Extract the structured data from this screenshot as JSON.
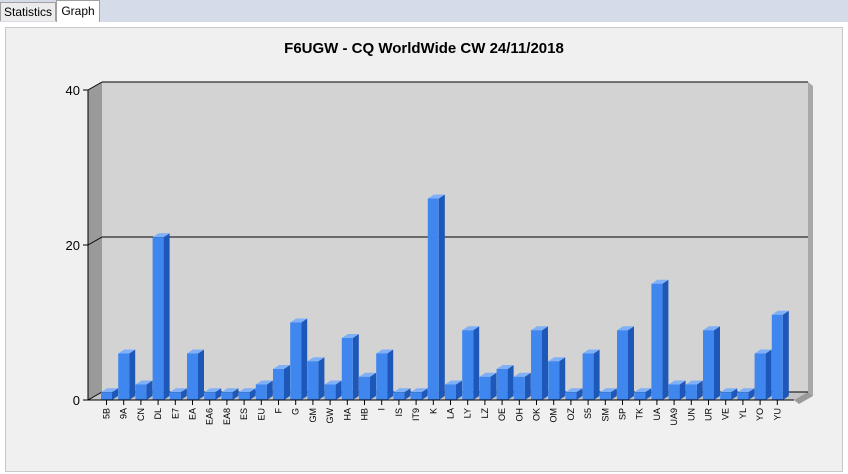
{
  "tabs": [
    {
      "label": "Statistics",
      "active": false
    },
    {
      "label": "Graph",
      "active": true
    }
  ],
  "colors": {
    "bar_front": "#3f86ee",
    "bar_side": "#1d57b8",
    "bar_top": "#7fb0f8",
    "plot_bg": "#d3d3d3",
    "back_wall": "#9a9a9a"
  },
  "chart_data": {
    "type": "bar",
    "title": "F6UGW - CQ WorldWide CW 24/11/2018",
    "xlabel": "",
    "ylabel": "",
    "ylim": [
      0,
      40
    ],
    "yticks": [
      0,
      20,
      40
    ],
    "grid": true,
    "legend": "none",
    "categories": [
      "5B",
      "9A",
      "CN",
      "DL",
      "E7",
      "EA",
      "EA6",
      "EA8",
      "ES",
      "EU",
      "F",
      "G",
      "GM",
      "GW",
      "HA",
      "HB",
      "I",
      "IS",
      "IT9",
      "K",
      "LA",
      "LY",
      "LZ",
      "OE",
      "OH",
      "OK",
      "OM",
      "OZ",
      "S5",
      "SM",
      "SP",
      "TK",
      "UA",
      "UA9",
      "UN",
      "UR",
      "VE",
      "YL",
      "YO",
      "YU"
    ],
    "values": [
      1,
      6,
      2,
      21,
      1,
      6,
      1,
      1,
      1,
      2,
      4,
      10,
      5,
      2,
      8,
      3,
      6,
      1,
      1,
      26,
      2,
      9,
      3,
      4,
      3,
      9,
      5,
      1,
      6,
      1,
      9,
      1,
      15,
      2,
      2,
      9,
      1,
      1,
      6,
      11
    ]
  }
}
